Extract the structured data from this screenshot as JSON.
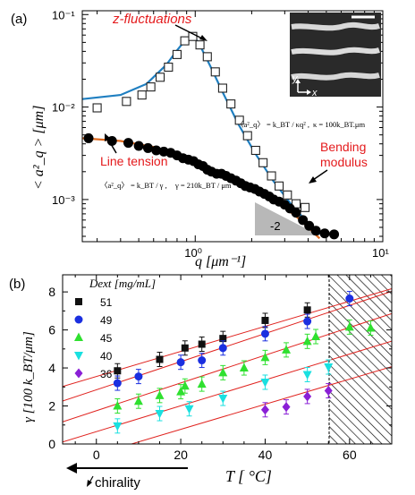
{
  "chart_data": [
    {
      "type": "scatter",
      "panel_label": "(a)",
      "xscale": "log",
      "yscale": "log",
      "xlim": [
        0.25,
        10
      ],
      "ylim": [
        0.00035,
        0.11
      ],
      "xlabel": "q [μm⁻¹]",
      "ylabel": "< a²_q > [μm]",
      "xticks": [
        {
          "value": 1,
          "label": "10⁰"
        },
        {
          "value": 10,
          "label": "10¹"
        }
      ],
      "yticks": [
        {
          "value": 0.001,
          "label": "10⁻³"
        },
        {
          "value": 0.01,
          "label": "10⁻²"
        },
        {
          "value": 0.1,
          "label": "10⁻¹"
        }
      ],
      "colors": {
        "z_fit": "#1f7fc1",
        "line_fit": "#e06a1f",
        "z_label": "#e41a1c",
        "line_tension_label": "#e41a1c"
      },
      "series": [
        {
          "name": "z-fluctuations",
          "marker": "open-square",
          "x": [
            0.3,
            0.43,
            0.52,
            0.58,
            0.65,
            0.72,
            0.8,
            0.88,
            0.97,
            1.06,
            1.16,
            1.28,
            1.4,
            1.55,
            1.72,
            1.9,
            2.1,
            2.3,
            2.55,
            2.8,
            3.1,
            3.45,
            3.85
          ],
          "y": [
            0.0098,
            0.0115,
            0.0135,
            0.0165,
            0.021,
            0.027,
            0.037,
            0.052,
            0.058,
            0.047,
            0.035,
            0.024,
            0.016,
            0.0108,
            0.0072,
            0.0049,
            0.0034,
            0.0025,
            0.0018,
            0.0014,
            0.00112,
            0.0009,
            0.00082
          ]
        },
        {
          "name": "line tension",
          "marker": "filled-circle",
          "x": [
            0.27,
            0.36,
            0.44,
            0.5,
            0.56,
            0.62,
            0.68,
            0.74,
            0.8,
            0.86,
            0.92,
            0.98,
            1.04,
            1.1,
            1.16,
            1.22,
            1.3,
            1.38,
            1.46,
            1.55,
            1.65,
            1.75,
            1.85,
            1.96,
            2.08,
            2.2,
            2.34,
            2.48,
            2.62,
            2.8,
            3.0,
            3.2,
            3.45,
            3.75,
            4.05,
            4.4,
            4.9,
            5.5
          ],
          "y": [
            0.0046,
            0.0043,
            0.0041,
            0.0038,
            0.0036,
            0.0034,
            0.0033,
            0.0032,
            0.003,
            0.0028,
            0.0027,
            0.0026,
            0.0024,
            0.0023,
            0.0021,
            0.002,
            0.0019,
            0.0019,
            0.0018,
            0.0017,
            0.0016,
            0.0015,
            0.0014,
            0.00135,
            0.0013,
            0.00122,
            0.00115,
            0.00108,
            0.001,
            0.00095,
            0.00088,
            0.0008,
            0.00072,
            0.0006,
            0.00052,
            0.00046,
            0.00043,
            0.00042
          ]
        }
      ],
      "fits": [
        {
          "name": "z-fluctuations fit",
          "x": [
            0.25,
            0.4,
            0.55,
            0.7,
            0.8,
            0.88,
            0.95,
            1.0,
            1.08,
            1.2,
            1.4,
            1.7,
            2.1,
            2.6,
            3.2,
            3.8,
            4.6
          ],
          "y": [
            0.0122,
            0.0135,
            0.0178,
            0.0285,
            0.041,
            0.052,
            0.058,
            0.056,
            0.043,
            0.028,
            0.0145,
            0.0065,
            0.0031,
            0.0016,
            0.00092,
            0.00062,
            0.00042
          ]
        },
        {
          "name": "line tension fit",
          "x": [
            0.25,
            0.4,
            0.6,
            0.8,
            1.0,
            1.3,
            1.6,
            2.0,
            2.5,
            3.0,
            3.5,
            4.0,
            4.6
          ],
          "y": [
            0.0046,
            0.0043,
            0.0037,
            0.0031,
            0.0026,
            0.002,
            0.00165,
            0.0013,
            0.00103,
            0.00082,
            0.00064,
            0.0005,
            0.00038
          ]
        }
      ],
      "annotations": {
        "z_label": "z-fluctuations",
        "line_tension": "Line tension",
        "bending": [
          "Bending",
          "modulus"
        ],
        "slope": "-2",
        "formula_bending": [
          "〈a²_q〉 = k_BT / κq² ,",
          "κ = 100k_BT.μm"
        ],
        "formula_tension": [
          "〈a²_q〉 = k_BT / γ ,",
          "γ = 210k_BT / μm"
        ],
        "inset_axes": [
          "y",
          "x"
        ]
      }
    },
    {
      "type": "scatter",
      "panel_label": "(b)",
      "xlim": [
        -8,
        70
      ],
      "ylim": [
        0,
        8.9
      ],
      "xlabel": "T [ °C]",
      "ylabel": "γ [100 k_BT/μm]",
      "xticks": [
        0,
        20,
        40,
        60
      ],
      "yticks": [
        0,
        2,
        4,
        6,
        8
      ],
      "hatched_region_from": 60,
      "legend_title": "Dext [mg/mL]",
      "legend_position": "top-left",
      "chirality_label": "chirality",
      "series": [
        {
          "name": "51",
          "marker": "square",
          "color": "#111111",
          "x": [
            5,
            15,
            21,
            25,
            30,
            40,
            50
          ],
          "y": [
            3.85,
            4.45,
            5.05,
            5.25,
            5.55,
            6.5,
            7.05
          ]
        },
        {
          "name": "49",
          "marker": "circle",
          "color": "#1b2fe0",
          "x": [
            5,
            10,
            20,
            25,
            30,
            40,
            50,
            60
          ],
          "y": [
            3.2,
            3.55,
            4.3,
            4.4,
            5.05,
            5.8,
            6.45,
            7.65
          ]
        },
        {
          "name": "45",
          "marker": "triangle-up",
          "color": "#2fe02f",
          "x": [
            5,
            10,
            15,
            20,
            21,
            25,
            30,
            35,
            40,
            45,
            50,
            52,
            60,
            65
          ],
          "y": [
            2.0,
            2.25,
            2.55,
            2.75,
            3.05,
            3.15,
            3.75,
            4.0,
            4.55,
            4.95,
            5.4,
            5.65,
            6.15,
            6.1
          ]
        },
        {
          "name": "40",
          "marker": "triangle-down",
          "color": "#19e0e0",
          "x": [
            5,
            15,
            22,
            30,
            40,
            50,
            55
          ],
          "y": [
            0.95,
            1.6,
            1.85,
            2.4,
            3.25,
            3.65,
            4.05
          ]
        },
        {
          "name": "36",
          "marker": "diamond",
          "color": "#8a1fd6",
          "x": [
            40,
            45,
            50,
            55
          ],
          "y": [
            1.8,
            1.95,
            2.5,
            2.8
          ]
        }
      ],
      "fit_lines": [
        {
          "intercept": 3.55,
          "slope": 0.066
        },
        {
          "intercept": 2.85,
          "slope": 0.074
        },
        {
          "intercept": 1.75,
          "slope": 0.073
        },
        {
          "intercept": 0.65,
          "slope": 0.068
        },
        {
          "intercept": -0.55,
          "slope": 0.066
        }
      ],
      "fit_color": "#e0231f"
    }
  ]
}
